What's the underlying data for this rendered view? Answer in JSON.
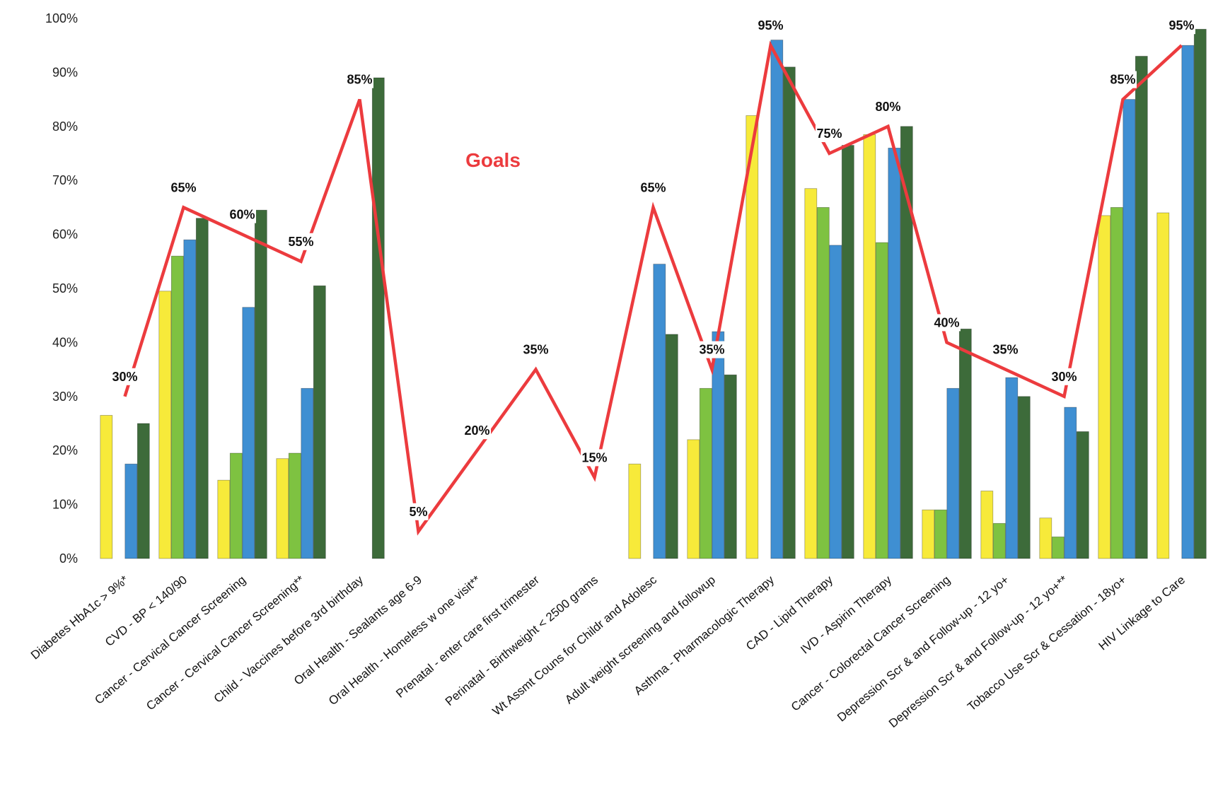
{
  "chart_data": {
    "type": "bar",
    "title": "",
    "xlabel": "",
    "ylabel": "",
    "ylim": [
      0,
      100
    ],
    "y_ticks": [
      "0%",
      "10%",
      "20%",
      "30%",
      "40%",
      "50%",
      "60%",
      "70%",
      "80%",
      "90%",
      "100%"
    ],
    "grid": false,
    "categories": [
      "Diabetes HbA1c > 9%*",
      "CVD - BP < 140/90",
      "Cancer - Cervical Cancer Screening",
      "Cancer - Cervical Cancer Screening**",
      "Child - Vaccines before 3rd birthday",
      "Oral Health - Sealants age 6-9",
      "Oral Health - Homeless w one visit**",
      "Prenatal - enter care first trimester",
      "Perinatal - Birthweight < 2500 grams",
      "Wt Assmt Couns for Childr and Adolesc",
      "Adult weight screening and followup",
      "Asthma - Pharmacologic Therapy",
      "CAD - Lipid Therapy",
      "IVD - Aspirin Therapy",
      "Cancer - Colorectal Cancer Screening",
      "Depression Scr  & and Follow-up - 12 yo+",
      "Depression Scr  & and Follow-up - 12 yo+**",
      "Tobacco Use Scr & Cessation - 18yo+",
      "HIV Linkage to Care"
    ],
    "series": [
      {
        "color": "#f7ea3a",
        "values": [
          26.5,
          49.5,
          14.5,
          18.5,
          null,
          null,
          null,
          null,
          null,
          17.5,
          22,
          82,
          68.5,
          78.5,
          9,
          12.5,
          7.5,
          63.5,
          64
        ]
      },
      {
        "color": "#7ec241",
        "values": [
          null,
          56,
          19.5,
          19.5,
          null,
          null,
          null,
          null,
          null,
          null,
          31.5,
          null,
          65,
          58.5,
          9,
          6.5,
          4,
          65,
          null
        ]
      },
      {
        "color": "#3f8fd2",
        "values": [
          17.5,
          59,
          46.5,
          31.5,
          null,
          null,
          null,
          null,
          null,
          54.5,
          42,
          96,
          58,
          76,
          31.5,
          33.5,
          28,
          85,
          95
        ]
      },
      {
        "color": "#3d6b3a",
        "values": [
          25,
          63,
          64.5,
          50.5,
          89,
          null,
          null,
          null,
          null,
          41.5,
          34,
          91,
          76.5,
          80,
          42.5,
          30,
          23.5,
          93,
          98
        ]
      }
    ],
    "goals": {
      "name": "Goals",
      "color": "#ec3b3e",
      "values": [
        30,
        65,
        60,
        55,
        85,
        5,
        20,
        35,
        15,
        65,
        35,
        95,
        75,
        80,
        40,
        35,
        30,
        85,
        95
      ],
      "labels": [
        "30%",
        "65%",
        "60%",
        "55%",
        "85%",
        "5%",
        "20%",
        "35%",
        "15%",
        "65%",
        "35%",
        "95%",
        "75%",
        "80%",
        "40%",
        "35%",
        "30%",
        "85%",
        "95%"
      ]
    },
    "legend_placement": "none"
  }
}
